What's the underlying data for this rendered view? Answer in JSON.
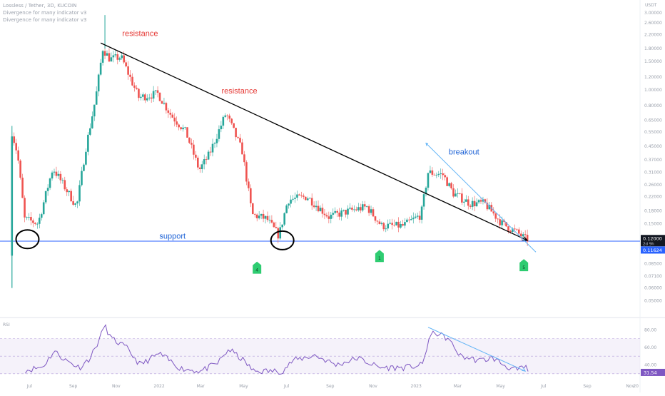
{
  "header": {
    "symbol": "Lossless / Tether, 3D, KUCOIN",
    "indicator_1": "Divergence for many indicator v3",
    "indicator_2": "Divergence for many indicator v3"
  },
  "colors": {
    "up": "#26a69a",
    "down": "#ef5350",
    "support": "#2962ff",
    "trendline": "#000000",
    "breakout": "#64b5f6",
    "rsi": "#7e57c2",
    "signal": "#2ecc71",
    "price_label_dark": "#131722",
    "price_label_blue": "#2962ff",
    "annotation_red": "#e53935",
    "annotation_blue": "#1e63d6"
  },
  "chart_data": [
    {
      "type": "candlestick",
      "title": "Lossless / Tether, 3D, KUCOIN",
      "y_scale": "log",
      "y_axis_unit": "USDT",
      "ylim": [
        0.0415,
        3.45
      ],
      "xlim": [
        "2021-05-20",
        "2023-11-15"
      ],
      "x_tick_labels": [
        "Jul",
        "Sep",
        "Nov",
        "2022",
        "Mar",
        "May",
        "Jul",
        "Sep",
        "Nov",
        "2023",
        "Mar",
        "May",
        "Jul",
        "Sep",
        "Nov",
        "20"
      ],
      "y_tick_labels": [
        3.0,
        2.6,
        2.2,
        1.8,
        1.5,
        1.2,
        1.0,
        0.8,
        0.65,
        0.55,
        0.45,
        0.37,
        0.31,
        0.26,
        0.22,
        0.18,
        0.15,
        0.12,
        0.1,
        0.085,
        0.071,
        0.06,
        0.05
      ],
      "y_tick_text": [
        "3.00000",
        "2.60000",
        "2.20000",
        "1.80000",
        "1.50000",
        "1.20000",
        "1.00000",
        "0.80000",
        "0.65000",
        "0.55000",
        "0.45000",
        "0.37000",
        "0.31000",
        "0.26000",
        "0.22000",
        "0.18000",
        "0.15000",
        "0.12000",
        "0.10000",
        "0.08500",
        "0.07100",
        "0.06000",
        "0.05000"
      ],
      "series_anchors": [
        {
          "date": "2021-06-05",
          "price": 0.095
        },
        {
          "date": "2021-06-08",
          "price": 0.55
        },
        {
          "date": "2021-06-16",
          "price": 0.4
        },
        {
          "date": "2021-06-26",
          "price": 0.16
        },
        {
          "date": "2021-07-15",
          "price": 0.15
        },
        {
          "date": "2021-08-05",
          "price": 0.33
        },
        {
          "date": "2021-08-20",
          "price": 0.26
        },
        {
          "date": "2021-09-08",
          "price": 0.19
        },
        {
          "date": "2021-09-20",
          "price": 0.42
        },
        {
          "date": "2021-10-05",
          "price": 0.9
        },
        {
          "date": "2021-10-15",
          "price": 1.8
        },
        {
          "date": "2021-10-25",
          "price": 1.55
        },
        {
          "date": "2021-11-10",
          "price": 1.6
        },
        {
          "date": "2021-12-05",
          "price": 0.9
        },
        {
          "date": "2022-01-01",
          "price": 0.95
        },
        {
          "date": "2022-01-20",
          "price": 0.7
        },
        {
          "date": "2022-02-10",
          "price": 0.55
        },
        {
          "date": "2022-03-01",
          "price": 0.32
        },
        {
          "date": "2022-03-15",
          "price": 0.4
        },
        {
          "date": "2022-04-08",
          "price": 0.72
        },
        {
          "date": "2022-05-01",
          "price": 0.42
        },
        {
          "date": "2022-05-15",
          "price": 0.17
        },
        {
          "date": "2022-06-05",
          "price": 0.16
        },
        {
          "date": "2022-06-22",
          "price": 0.126
        },
        {
          "date": "2022-07-05",
          "price": 0.21
        },
        {
          "date": "2022-08-01",
          "price": 0.22
        },
        {
          "date": "2022-09-01",
          "price": 0.165
        },
        {
          "date": "2022-10-01",
          "price": 0.18
        },
        {
          "date": "2022-10-25",
          "price": 0.19
        },
        {
          "date": "2022-11-15",
          "price": 0.145
        },
        {
          "date": "2022-12-15",
          "price": 0.145
        },
        {
          "date": "2023-01-10",
          "price": 0.17
        },
        {
          "date": "2023-01-20",
          "price": 0.31
        },
        {
          "date": "2023-02-10",
          "price": 0.3
        },
        {
          "date": "2023-02-25",
          "price": 0.23
        },
        {
          "date": "2023-03-20",
          "price": 0.2
        },
        {
          "date": "2023-04-10",
          "price": 0.2
        },
        {
          "date": "2023-05-05",
          "price": 0.15
        },
        {
          "date": "2023-05-25",
          "price": 0.133
        },
        {
          "date": "2023-06-08",
          "price": 0.12
        }
      ],
      "wick_extremes": [
        {
          "date": "2021-06-05",
          "low": 0.06,
          "high": 0.6
        },
        {
          "date": "2021-10-15",
          "high": 2.9
        }
      ],
      "current_price": 0.12,
      "current_price_label": "0.12000",
      "countdown_label": "2d 9h",
      "alert_price": 0.11624,
      "alert_price_label": "0.11624",
      "support_level": 0.1168,
      "resistance_line": {
        "start": {
          "date": "2021-10-10",
          "price": 1.95
        },
        "end": {
          "date": "2023-06-08",
          "price": 0.118
        }
      },
      "breakout_line": {
        "start": {
          "date": "2023-01-15",
          "price": 0.47
        },
        "end": {
          "date": "2023-06-20",
          "price": 0.1
        }
      },
      "circled_lows": [
        {
          "date": "2021-06-28",
          "price": 0.12
        },
        {
          "date": "2022-06-25",
          "price": 0.118
        }
      ],
      "buy_signals": [
        {
          "date": "2022-05-20",
          "price": 0.083,
          "label": "4"
        },
        {
          "date": "2022-11-10",
          "price": 0.098,
          "label": "1"
        },
        {
          "date": "2023-06-03",
          "price": 0.086,
          "label": "5"
        }
      ],
      "annotations": [
        {
          "text": "resistance",
          "date": "2021-12-05",
          "price": 2.15,
          "color": "red"
        },
        {
          "text": "resistance",
          "date": "2022-04-25",
          "price": 0.95,
          "color": "red"
        },
        {
          "text": "breakout",
          "date": "2023-03-10",
          "price": 0.4,
          "color": "blue"
        },
        {
          "text": "support",
          "date": "2022-01-20",
          "price": 0.121,
          "color": "blue"
        }
      ]
    },
    {
      "type": "line",
      "title": "RSI",
      "ylim": [
        25,
        90
      ],
      "y_tick_labels": [
        80,
        60,
        40
      ],
      "y_tick_text": [
        "80.00",
        "60.00",
        "40.00"
      ],
      "band": [
        30,
        70
      ],
      "current_value": 31.54,
      "current_value_label": "31.54",
      "series_anchors": [
        {
          "date": "2021-06-25",
          "value": 34
        },
        {
          "date": "2021-07-20",
          "value": 38
        },
        {
          "date": "2021-08-05",
          "value": 56
        },
        {
          "date": "2021-08-20",
          "value": 46
        },
        {
          "date": "2021-09-10",
          "value": 37
        },
        {
          "date": "2021-09-25",
          "value": 48
        },
        {
          "date": "2021-10-10",
          "value": 72
        },
        {
          "date": "2021-10-15",
          "value": 86
        },
        {
          "date": "2021-10-25",
          "value": 70
        },
        {
          "date": "2021-11-15",
          "value": 60
        },
        {
          "date": "2021-12-05",
          "value": 40
        },
        {
          "date": "2022-01-01",
          "value": 53
        },
        {
          "date": "2022-02-01",
          "value": 36
        },
        {
          "date": "2022-03-01",
          "value": 33
        },
        {
          "date": "2022-03-25",
          "value": 42
        },
        {
          "date": "2022-04-10",
          "value": 58
        },
        {
          "date": "2022-05-01",
          "value": 45
        },
        {
          "date": "2022-05-15",
          "value": 33
        },
        {
          "date": "2022-06-25",
          "value": 33
        },
        {
          "date": "2022-07-10",
          "value": 45
        },
        {
          "date": "2022-08-10",
          "value": 51
        },
        {
          "date": "2022-09-10",
          "value": 40
        },
        {
          "date": "2022-10-10",
          "value": 48
        },
        {
          "date": "2022-11-10",
          "value": 37
        },
        {
          "date": "2022-12-15",
          "value": 37
        },
        {
          "date": "2023-01-10",
          "value": 40
        },
        {
          "date": "2023-01-20",
          "value": 72
        },
        {
          "date": "2023-01-28",
          "value": 77
        },
        {
          "date": "2023-02-15",
          "value": 70
        },
        {
          "date": "2023-03-05",
          "value": 50
        },
        {
          "date": "2023-04-01",
          "value": 45
        },
        {
          "date": "2023-04-20",
          "value": 48
        },
        {
          "date": "2023-05-10",
          "value": 38
        },
        {
          "date": "2023-05-25",
          "value": 34
        },
        {
          "date": "2023-06-05",
          "value": 38
        },
        {
          "date": "2023-06-10",
          "value": 31.5
        }
      ],
      "divergence_line": {
        "start": {
          "date": "2023-01-18",
          "value": 83
        },
        "end": {
          "date": "2023-06-05",
          "value": 33
        }
      }
    }
  ]
}
